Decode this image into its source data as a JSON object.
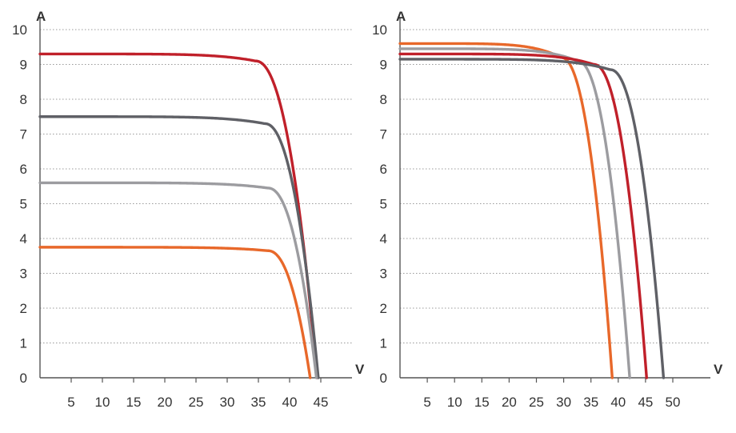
{
  "chart_data": [
    {
      "type": "line",
      "title": "",
      "xlabel": "V",
      "ylabel": "A",
      "xlim": [
        0,
        48
      ],
      "ylim": [
        0,
        10
      ],
      "x_ticks": [
        5,
        10,
        15,
        20,
        25,
        30,
        35,
        40,
        45
      ],
      "y_ticks": [
        0,
        1,
        2,
        3,
        4,
        5,
        6,
        7,
        8,
        9,
        10
      ],
      "grid": "horizontal dotted",
      "legend": "none",
      "series": [
        {
          "color": "#c0202a",
          "isc": 9.3,
          "voc": 44.4,
          "knee_v": 34.5,
          "knee_i": 9.1
        },
        {
          "color": "#5f6066",
          "isc": 7.5,
          "voc": 44.6,
          "knee_v": 36.0,
          "knee_i": 7.3
        },
        {
          "color": "#9c9ca0",
          "isc": 5.6,
          "voc": 44.3,
          "knee_v": 36.5,
          "knee_i": 5.45
        },
        {
          "color": "#e8682a",
          "isc": 3.75,
          "voc": 43.3,
          "knee_v": 36.5,
          "knee_i": 3.65
        }
      ]
    },
    {
      "type": "line",
      "title": "",
      "xlabel": "V",
      "ylabel": "A",
      "xlim": [
        0,
        54
      ],
      "ylim": [
        0,
        10
      ],
      "x_ticks": [
        5,
        10,
        15,
        20,
        25,
        30,
        35,
        40,
        45,
        50
      ],
      "y_ticks": [
        0,
        1,
        2,
        3,
        4,
        5,
        6,
        7,
        8,
        9,
        10
      ],
      "grid": "horizontal dotted",
      "legend": "none",
      "series": [
        {
          "color": "#e8682a",
          "isc": 9.6,
          "voc": 38.9,
          "knee_v": 29.5,
          "knee_i": 9.2
        },
        {
          "color": "#9c9ca0",
          "isc": 9.45,
          "voc": 42.1,
          "knee_v": 32.5,
          "knee_i": 9.1
        },
        {
          "color": "#c0202a",
          "isc": 9.3,
          "voc": 45.2,
          "knee_v": 35.5,
          "knee_i": 9.0
        },
        {
          "color": "#5f6066",
          "isc": 9.15,
          "voc": 48.3,
          "knee_v": 38.5,
          "knee_i": 8.85
        }
      ]
    }
  ]
}
